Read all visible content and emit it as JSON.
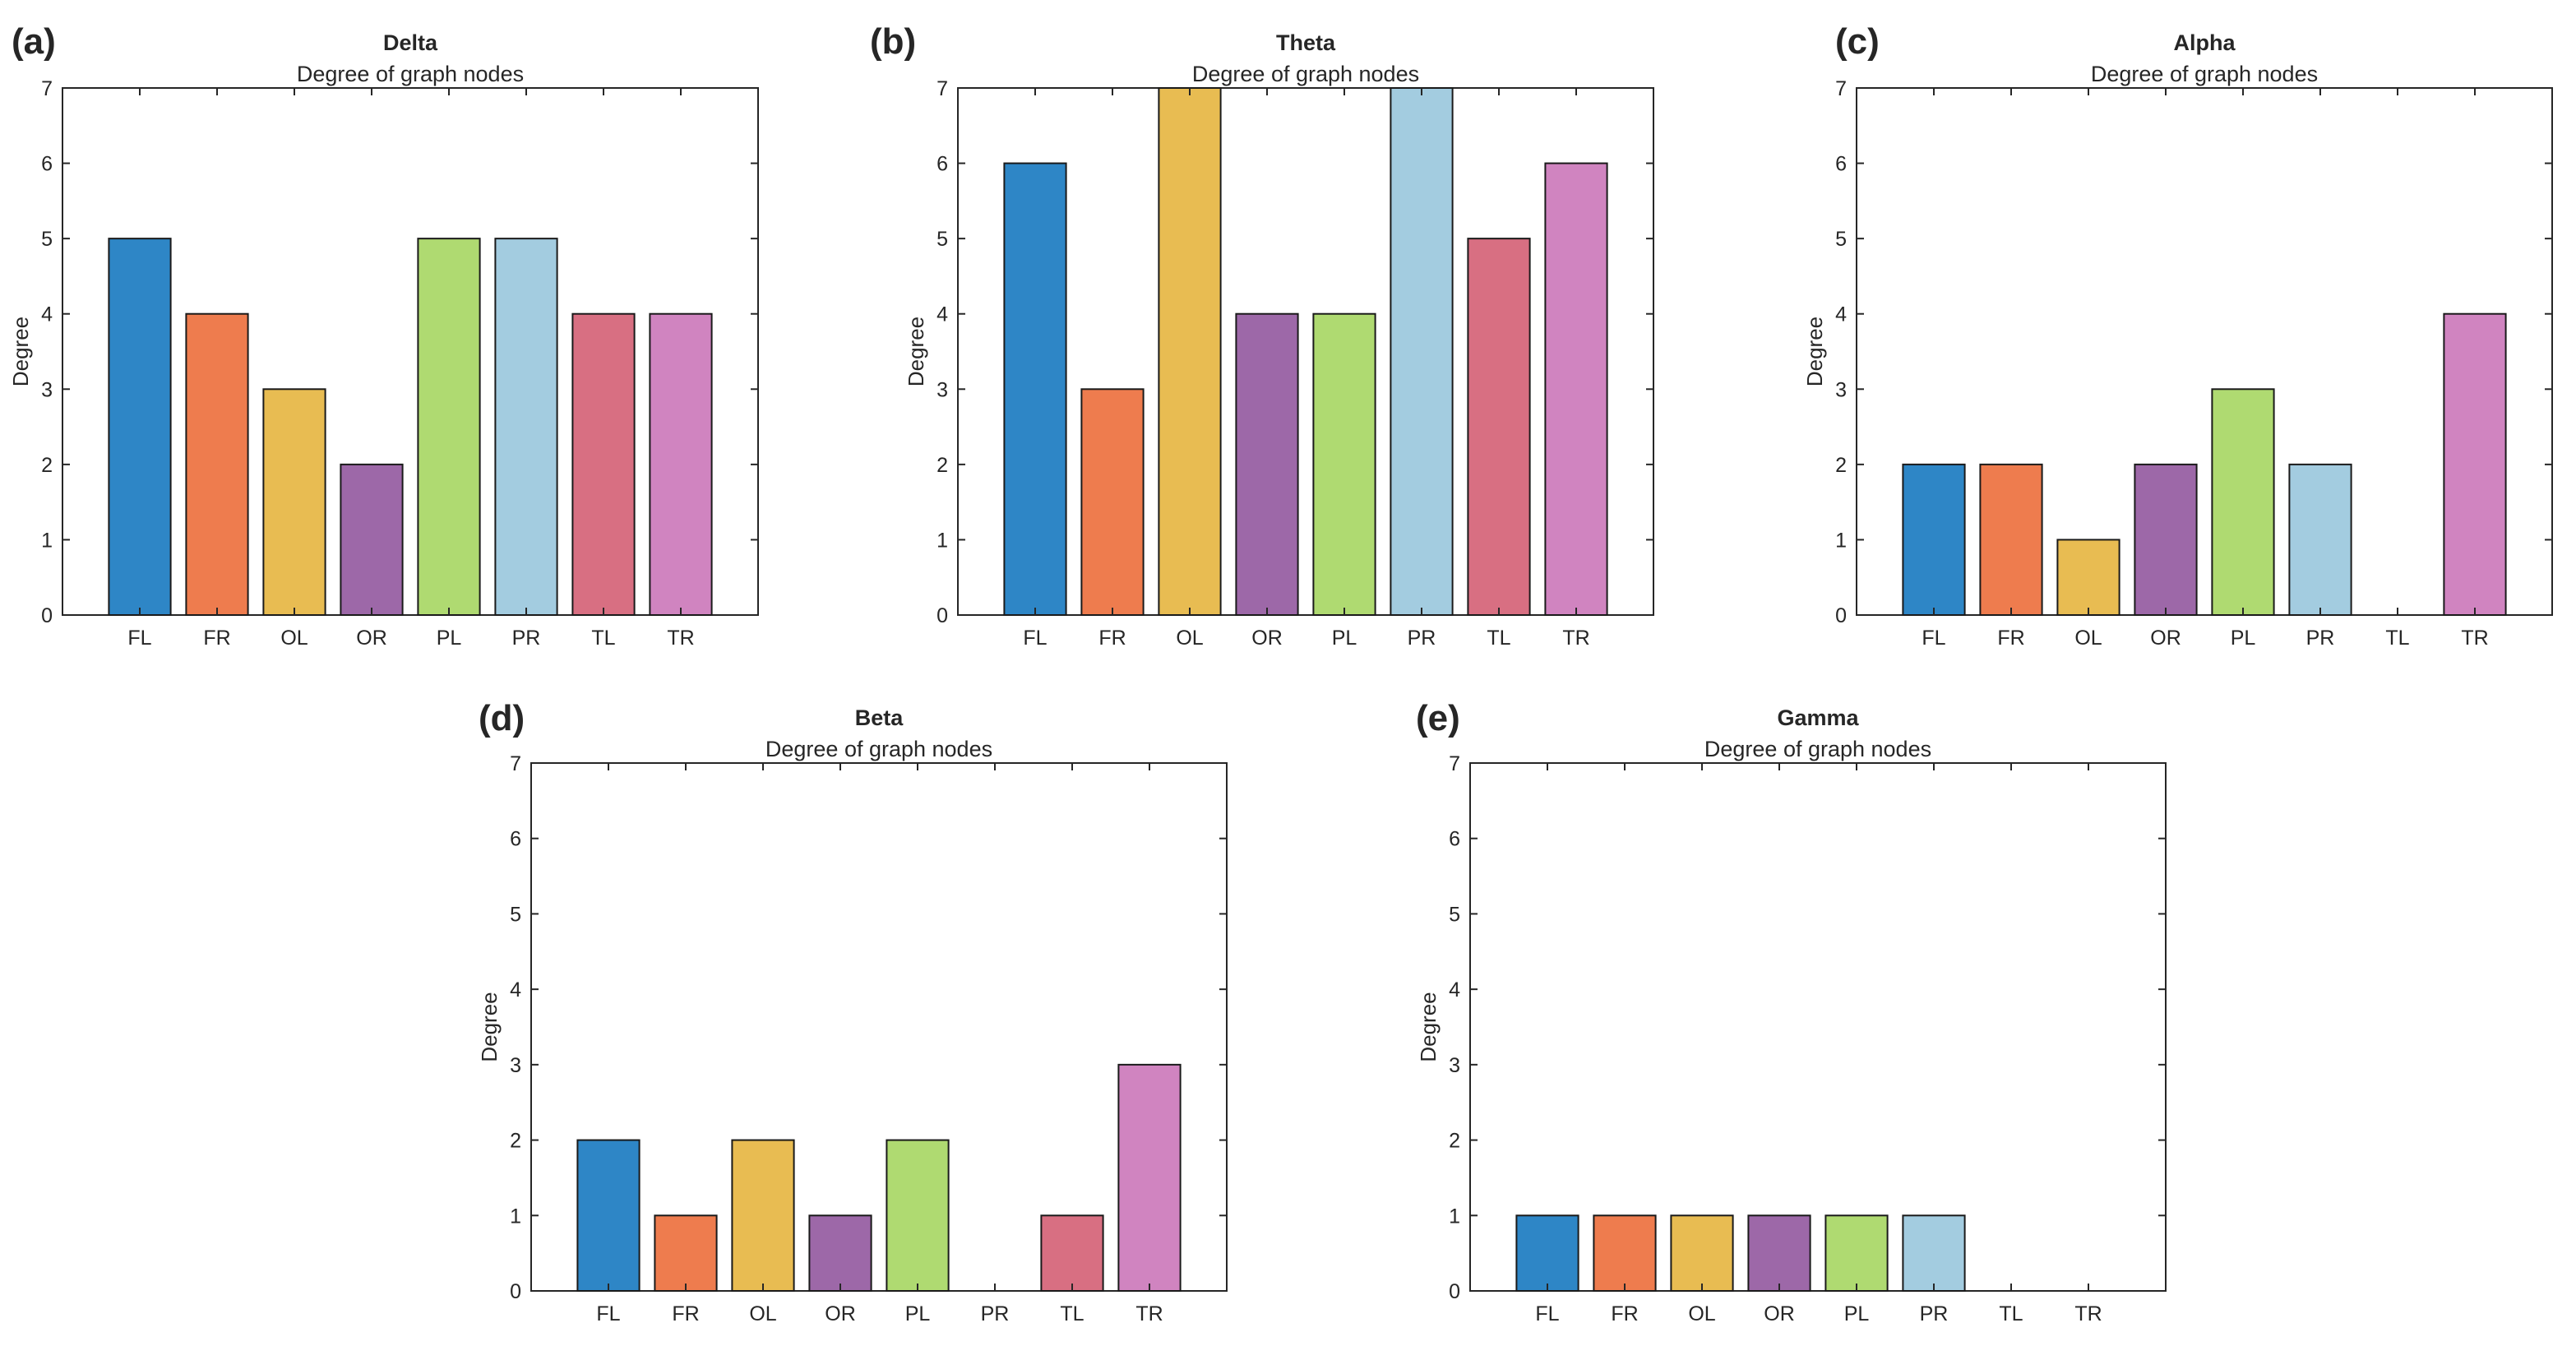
{
  "chart_data": [
    {
      "type": "bar",
      "panel_label": "(a)",
      "title": "Delta",
      "subtitle": "Degree of graph nodes",
      "xlabel": "",
      "ylabel": "Degree",
      "categories": [
        "FL",
        "FR",
        "OL",
        "OR",
        "PL",
        "PR",
        "TL",
        "TR"
      ],
      "values": [
        5,
        4,
        3,
        2,
        5,
        5,
        4,
        4
      ],
      "ylim": [
        0,
        7
      ],
      "yticks": [
        0,
        1,
        2,
        3,
        4,
        5,
        6,
        7
      ],
      "grid": false
    },
    {
      "type": "bar",
      "panel_label": "(b)",
      "title": "Theta",
      "subtitle": "Degree of graph nodes",
      "xlabel": "",
      "ylabel": "Degree",
      "categories": [
        "FL",
        "FR",
        "OL",
        "OR",
        "PL",
        "PR",
        "TL",
        "TR"
      ],
      "values": [
        6,
        3,
        7,
        4,
        4,
        7,
        5,
        6
      ],
      "ylim": [
        0,
        7
      ],
      "yticks": [
        0,
        1,
        2,
        3,
        4,
        5,
        6,
        7
      ],
      "grid": false
    },
    {
      "type": "bar",
      "panel_label": "(c)",
      "title": "Alpha",
      "subtitle": "Degree of graph nodes",
      "xlabel": "",
      "ylabel": "Degree",
      "categories": [
        "FL",
        "FR",
        "OL",
        "OR",
        "PL",
        "PR",
        "TL",
        "TR"
      ],
      "values": [
        2,
        2,
        1,
        2,
        3,
        2,
        0,
        4
      ],
      "ylim": [
        0,
        7
      ],
      "yticks": [
        0,
        1,
        2,
        3,
        4,
        5,
        6,
        7
      ],
      "grid": false
    },
    {
      "type": "bar",
      "panel_label": "(d)",
      "title": "Beta",
      "subtitle": "Degree of graph nodes",
      "xlabel": "",
      "ylabel": "Degree",
      "categories": [
        "FL",
        "FR",
        "OL",
        "OR",
        "PL",
        "PR",
        "TL",
        "TR"
      ],
      "values": [
        2,
        1,
        2,
        1,
        2,
        0,
        1,
        3
      ],
      "ylim": [
        0,
        7
      ],
      "yticks": [
        0,
        1,
        2,
        3,
        4,
        5,
        6,
        7
      ],
      "grid": false
    },
    {
      "type": "bar",
      "panel_label": "(e)",
      "title": "Gamma",
      "subtitle": "Degree of graph nodes",
      "xlabel": "",
      "ylabel": "Degree",
      "categories": [
        "FL",
        "FR",
        "OL",
        "OR",
        "PL",
        "PR",
        "TL",
        "TR"
      ],
      "values": [
        1,
        1,
        1,
        1,
        1,
        1,
        0,
        0
      ],
      "ylim": [
        0,
        7
      ],
      "yticks": [
        0,
        1,
        2,
        3,
        4,
        5,
        6,
        7
      ],
      "grid": false
    }
  ],
  "colors": {
    "bars": [
      "#2e86c6",
      "#ee7c4e",
      "#e8bc52",
      "#9d68a8",
      "#afda71",
      "#a3cce0",
      "#d86f82",
      "#d084c0"
    ],
    "axes": "#262626",
    "text": "#262626"
  }
}
